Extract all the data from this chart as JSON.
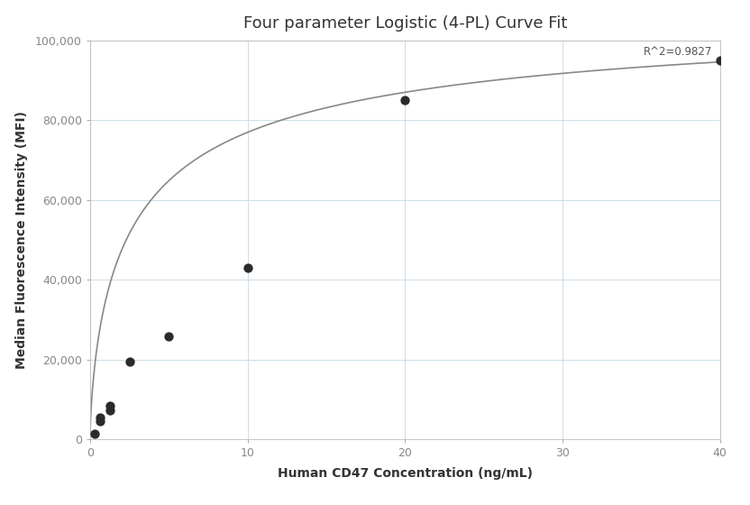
{
  "title": "Four parameter Logistic (4-PL) Curve Fit",
  "xlabel": "Human CD47 Concentration (ng/mL)",
  "ylabel": "Median Fluorescence Intensity (MFI)",
  "scatter_x": [
    0.313,
    0.625,
    0.625,
    1.25,
    1.25,
    2.5,
    5.0,
    10.0,
    20.0,
    40.0
  ],
  "scatter_y": [
    1500,
    4500,
    5500,
    7200,
    8500,
    19500,
    25800,
    43000,
    85000,
    95000
  ],
  "scatter_color": "#2b2b2b",
  "scatter_size": 55,
  "curve_color": "#888888",
  "curve_linewidth": 1.2,
  "r_squared": "R^2=0.9827",
  "xlim": [
    0,
    40
  ],
  "ylim": [
    0,
    100000
  ],
  "yticks": [
    0,
    20000,
    40000,
    60000,
    80000,
    100000
  ],
  "xticks": [
    0,
    10,
    20,
    30,
    40
  ],
  "background_color": "#ffffff",
  "grid_color": "#ccdde8",
  "title_fontsize": 13,
  "axis_label_fontsize": 10,
  "tick_fontsize": 9,
  "annotation_fontsize": 8.5
}
